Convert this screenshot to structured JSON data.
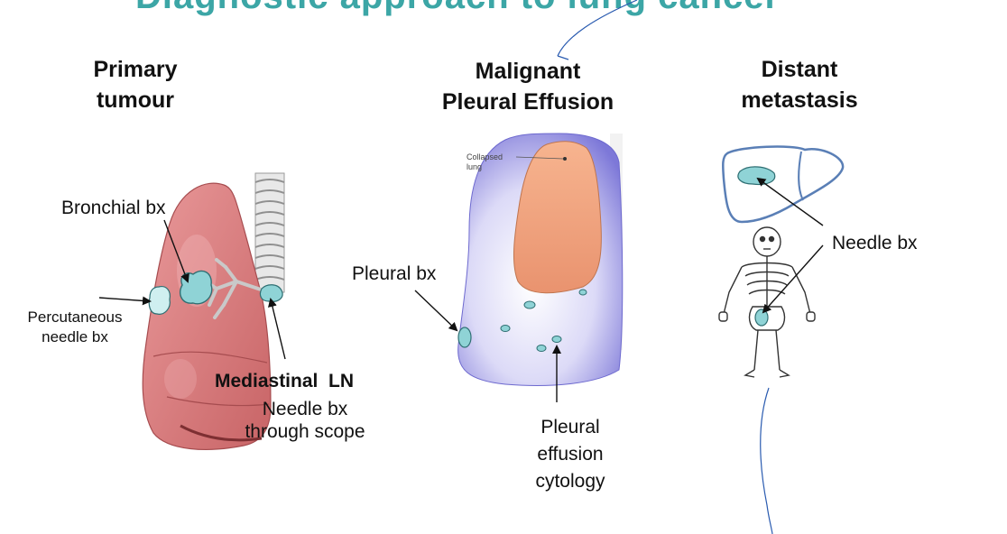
{
  "slide": {
    "title_fragment": "Diagnostic approach to lung cancer"
  },
  "columns": {
    "primary": {
      "heading_line1": "Primary",
      "heading_line2": "tumour",
      "bronchial_label": "Bronchial bx",
      "percutaneous_line1": "Percutaneous",
      "percutaneous_line2": "needle bx",
      "mediastinal_title": "Mediastinal  LN",
      "mediastinal_line1": "Needle bx",
      "mediastinal_line2": "through scope"
    },
    "effusion": {
      "heading_line1": "Malignant",
      "heading_line2": "Pleural Effusion",
      "collapsed_line1": "Collapsed",
      "collapsed_line2": "lung",
      "pleural_bx_label": "Pleural bx",
      "cytology_line1": "Pleural",
      "cytology_line2": "effusion",
      "cytology_line3": "cytology"
    },
    "metastasis": {
      "heading_line1": "Distant",
      "heading_line2": "metastasis",
      "needle_label": "Needle bx"
    }
  },
  "colors": {
    "title": "#3ca6a6",
    "lesion": "#8fd3d6",
    "lung": "#d9777a",
    "liver_outline": "#5a7fb6",
    "pleura": "#8c88e0"
  }
}
